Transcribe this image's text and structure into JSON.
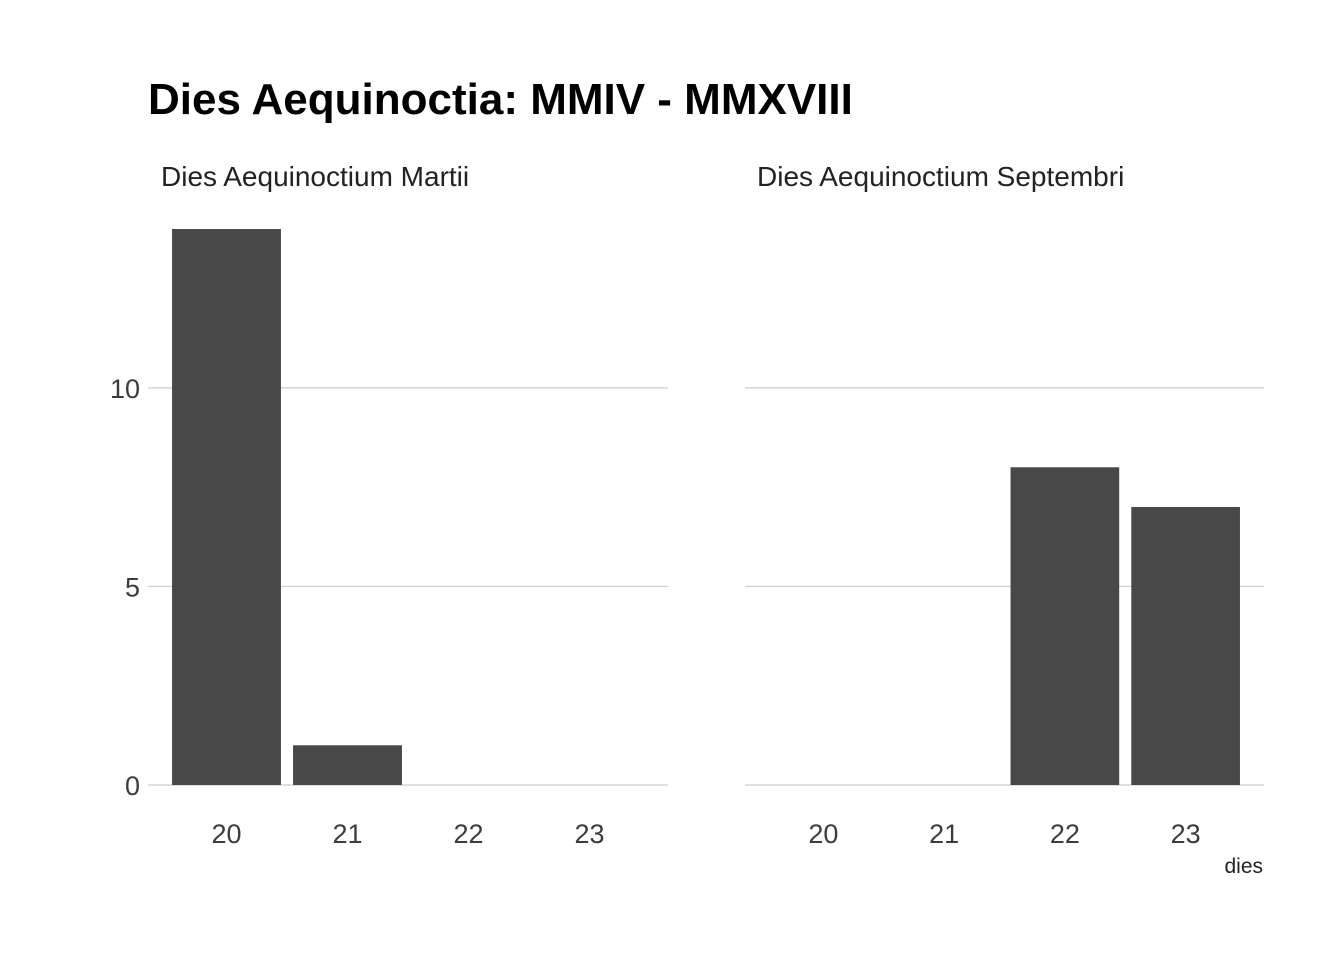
{
  "chart_data": {
    "type": "bar",
    "title": "Dies Aequinoctia: MMIV - MMXVIII",
    "xlabel": "dies",
    "ylabel": "",
    "ylim": [
      0,
      14
    ],
    "y_ticks": [
      0,
      5,
      10
    ],
    "grid": true,
    "categories": [
      "20",
      "21",
      "22",
      "23"
    ],
    "bar_color": "#484848",
    "grid_color": "#cccccc",
    "panels": [
      {
        "name": "Dies Aequinoctium Martii",
        "values": [
          14,
          1,
          0,
          0
        ]
      },
      {
        "name": "Dies Aequinoctium Septembri",
        "values": [
          0,
          0,
          8,
          7
        ]
      }
    ]
  }
}
